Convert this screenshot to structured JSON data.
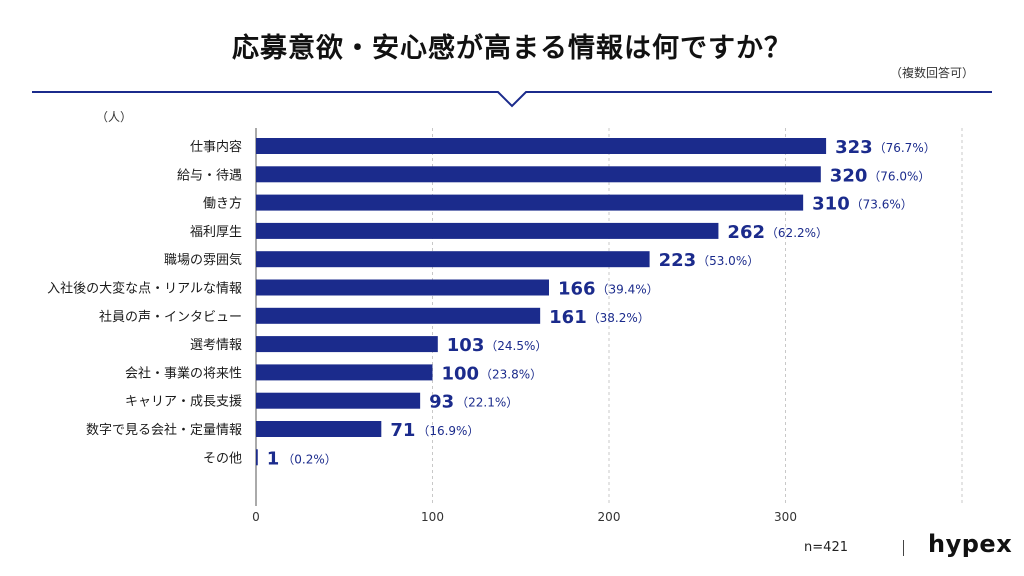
{
  "header": {
    "title": "応募意欲・安心感が高まる情報は何ですか？",
    "note": "（複数回答可）"
  },
  "unit_label": "（人）",
  "footer": {
    "sample": "n=421",
    "brand": "hypex"
  },
  "colors": {
    "bar": "#1b2b8c",
    "label": "#1b2b8c",
    "rule": "#1b2b8c"
  },
  "chart_data": {
    "type": "bar",
    "orientation": "horizontal",
    "title": "応募意欲・安心感が高まる情報は何ですか？",
    "categories": [
      "仕事内容",
      "給与・待遇",
      "働き方",
      "福利厚生",
      "職場の雰囲気",
      "入社後の大変な点・リアルな情報",
      "社員の声・インタビュー",
      "選考情報",
      "会社・事業の将来性",
      "キャリア・成長支援",
      "数字で見る会社・定量情報",
      "その他"
    ],
    "values": [
      323,
      320,
      310,
      262,
      223,
      166,
      161,
      103,
      100,
      93,
      71,
      1
    ],
    "value_labels": [
      "323",
      "320",
      "310",
      "262",
      "223",
      "166",
      "161",
      "103",
      "100",
      "93",
      "71",
      "1"
    ],
    "percent_labels": [
      "（76.7%）",
      "（76.0%）",
      "（73.6%）",
      "（62.2%）",
      "（53.0%）",
      "（39.4%）",
      "（38.2%）",
      "（24.5%）",
      "（23.8%）",
      "（22.1%）",
      "（16.9%）",
      "（0.2%）"
    ],
    "xlim": [
      0,
      400
    ],
    "xticks": [
      0,
      100,
      200,
      300
    ],
    "grid": true
  }
}
